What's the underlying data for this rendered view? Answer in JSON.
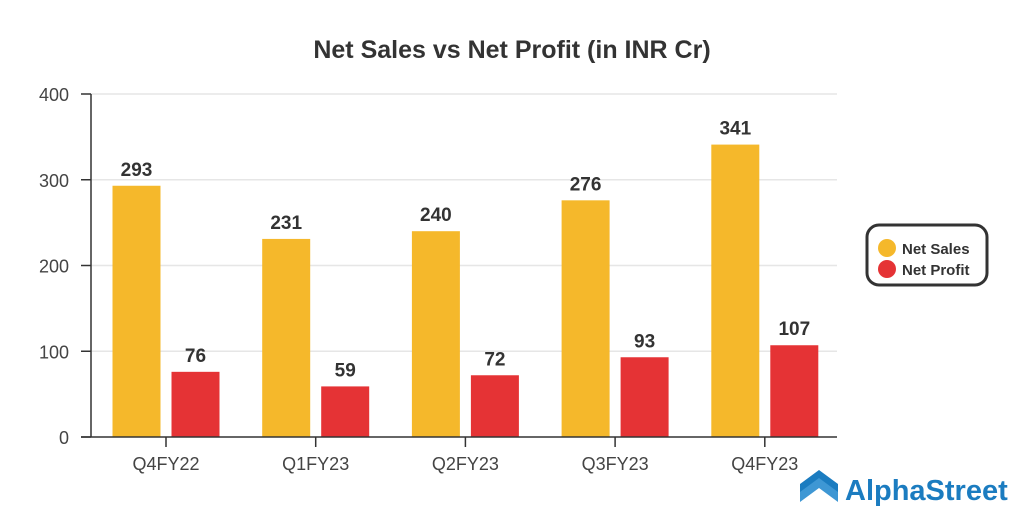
{
  "chart_data": {
    "type": "bar",
    "title": "Net Sales vs Net Profit (in INR Cr)",
    "xlabel": "",
    "ylabel": "",
    "ylim": [
      0,
      400
    ],
    "yticks": [
      0,
      100,
      200,
      300,
      400
    ],
    "grid": true,
    "legend_position": "right",
    "categories": [
      "Q4FY22",
      "Q1FY23",
      "Q2FY23",
      "Q3FY23",
      "Q4FY23"
    ],
    "series": [
      {
        "name": "Net Sales",
        "color": "#f5b82b",
        "values": [
          293,
          231,
          240,
          276,
          341
        ]
      },
      {
        "name": "Net Profit",
        "color": "#e53335",
        "values": [
          76,
          59,
          72,
          93,
          107
        ]
      }
    ]
  },
  "branding": {
    "logo_text": "AlphaStreet",
    "color": "#1b7cc0"
  }
}
